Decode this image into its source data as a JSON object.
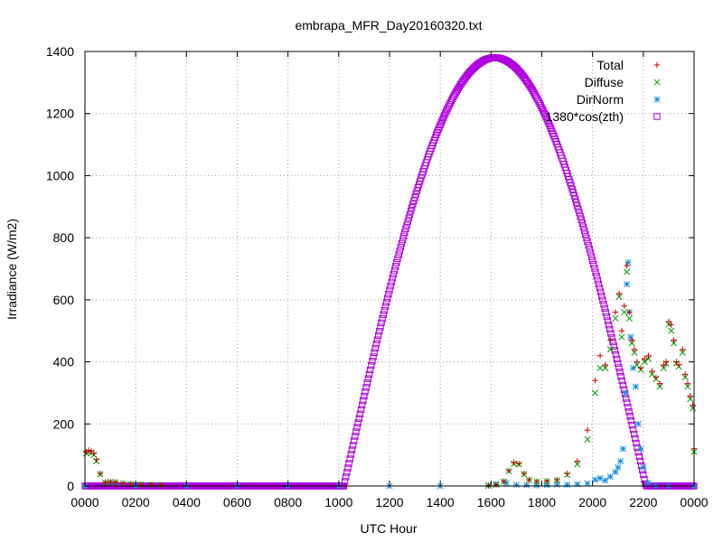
{
  "chart_data": {
    "type": "scatter",
    "title": "embrapa_MFR_Day20160320.txt",
    "xlabel": "UTC Hour",
    "ylabel": "Irradiance (W/m2)",
    "xlim": [
      0,
      24
    ],
    "ylim": [
      0,
      1400
    ],
    "x_tick_labels": [
      "0000",
      "0200",
      "0400",
      "0600",
      "0800",
      "1000",
      "1200",
      "1400",
      "1600",
      "1800",
      "2000",
      "2200",
      "0000"
    ],
    "y_ticks": [
      0,
      200,
      400,
      600,
      800,
      1000,
      1200,
      1400
    ],
    "grid": true,
    "legend_position": "top-right",
    "series": [
      {
        "name": "Total",
        "marker": "plus",
        "color": "#cc0000",
        "points": [
          [
            0.05,
            110
          ],
          [
            0.15,
            115
          ],
          [
            0.25,
            112
          ],
          [
            0.35,
            105
          ],
          [
            0.45,
            85
          ],
          [
            0.6,
            40
          ],
          [
            0.8,
            12
          ],
          [
            1.0,
            14
          ],
          [
            1.2,
            13
          ],
          [
            1.5,
            9
          ],
          [
            1.8,
            7
          ],
          [
            2.2,
            5
          ],
          [
            2.6,
            4
          ],
          [
            3.0,
            3
          ],
          [
            15.9,
            1
          ],
          [
            16.2,
            4
          ],
          [
            16.5,
            15
          ],
          [
            16.7,
            50
          ],
          [
            16.9,
            75
          ],
          [
            17.1,
            72
          ],
          [
            17.3,
            40
          ],
          [
            17.5,
            20
          ],
          [
            17.8,
            15
          ],
          [
            18.2,
            16
          ],
          [
            18.6,
            20
          ],
          [
            19.0,
            40
          ],
          [
            19.4,
            80
          ],
          [
            19.8,
            180
          ],
          [
            20.1,
            340
          ],
          [
            20.3,
            420
          ],
          [
            20.5,
            390
          ],
          [
            20.7,
            470
          ],
          [
            20.9,
            560
          ],
          [
            21.05,
            620
          ],
          [
            21.15,
            500
          ],
          [
            21.25,
            580
          ],
          [
            21.35,
            710
          ],
          [
            21.45,
            560
          ],
          [
            21.55,
            470
          ],
          [
            21.65,
            440
          ],
          [
            21.75,
            400
          ],
          [
            21.9,
            380
          ],
          [
            22.05,
            410
          ],
          [
            22.2,
            420
          ],
          [
            22.35,
            370
          ],
          [
            22.5,
            350
          ],
          [
            22.65,
            330
          ],
          [
            22.8,
            390
          ],
          [
            22.9,
            400
          ],
          [
            23.0,
            530
          ],
          [
            23.1,
            520
          ],
          [
            23.2,
            470
          ],
          [
            23.3,
            400
          ],
          [
            23.4,
            390
          ],
          [
            23.55,
            440
          ],
          [
            23.65,
            360
          ],
          [
            23.75,
            330
          ],
          [
            23.85,
            290
          ],
          [
            23.95,
            260
          ],
          [
            24.0,
            120
          ]
        ]
      },
      {
        "name": "Diffuse",
        "marker": "cross",
        "color": "#00a000",
        "points": [
          [
            0.05,
            105
          ],
          [
            0.15,
            110
          ],
          [
            0.25,
            108
          ],
          [
            0.35,
            100
          ],
          [
            0.45,
            80
          ],
          [
            0.6,
            38
          ],
          [
            0.8,
            11
          ],
          [
            1.0,
            13
          ],
          [
            1.2,
            12
          ],
          [
            1.5,
            8
          ],
          [
            1.8,
            6
          ],
          [
            2.2,
            5
          ],
          [
            2.6,
            4
          ],
          [
            3.0,
            3
          ],
          [
            15.9,
            1
          ],
          [
            16.2,
            4
          ],
          [
            16.5,
            14
          ],
          [
            16.7,
            48
          ],
          [
            16.9,
            72
          ],
          [
            17.1,
            70
          ],
          [
            17.3,
            38
          ],
          [
            17.5,
            19
          ],
          [
            17.8,
            14
          ],
          [
            18.2,
            15
          ],
          [
            18.6,
            18
          ],
          [
            19.0,
            36
          ],
          [
            19.4,
            70
          ],
          [
            19.8,
            150
          ],
          [
            20.1,
            300
          ],
          [
            20.3,
            380
          ],
          [
            20.5,
            380
          ],
          [
            20.7,
            440
          ],
          [
            20.9,
            540
          ],
          [
            21.05,
            610
          ],
          [
            21.15,
            480
          ],
          [
            21.25,
            560
          ],
          [
            21.35,
            690
          ],
          [
            21.45,
            540
          ],
          [
            21.55,
            460
          ],
          [
            21.65,
            430
          ],
          [
            21.75,
            390
          ],
          [
            21.9,
            375
          ],
          [
            22.05,
            400
          ],
          [
            22.2,
            410
          ],
          [
            22.35,
            360
          ],
          [
            22.5,
            345
          ],
          [
            22.65,
            320
          ],
          [
            22.8,
            380
          ],
          [
            22.9,
            395
          ],
          [
            23.0,
            520
          ],
          [
            23.1,
            500
          ],
          [
            23.2,
            460
          ],
          [
            23.3,
            395
          ],
          [
            23.4,
            385
          ],
          [
            23.55,
            430
          ],
          [
            23.65,
            350
          ],
          [
            23.75,
            320
          ],
          [
            23.85,
            280
          ],
          [
            23.95,
            250
          ],
          [
            24.0,
            110
          ]
        ]
      },
      {
        "name": "DirNorm",
        "marker": "star",
        "color": "#1a8fe0",
        "points": [
          [
            0.0,
            0
          ],
          [
            2.0,
            0
          ],
          [
            4.0,
            0
          ],
          [
            6.0,
            0
          ],
          [
            8.0,
            0
          ],
          [
            10.0,
            0
          ],
          [
            12.0,
            0
          ],
          [
            14.0,
            0
          ],
          [
            15.9,
            2
          ],
          [
            16.2,
            6
          ],
          [
            16.6,
            10
          ],
          [
            17.0,
            4
          ],
          [
            17.4,
            3
          ],
          [
            17.8,
            2
          ],
          [
            18.2,
            3
          ],
          [
            18.6,
            5
          ],
          [
            19.0,
            4
          ],
          [
            19.4,
            6
          ],
          [
            19.8,
            8
          ],
          [
            20.1,
            20
          ],
          [
            20.3,
            25
          ],
          [
            20.5,
            18
          ],
          [
            20.7,
            30
          ],
          [
            20.9,
            45
          ],
          [
            21.0,
            60
          ],
          [
            21.1,
            80
          ],
          [
            21.2,
            120
          ],
          [
            21.3,
            300
          ],
          [
            21.35,
            650
          ],
          [
            21.4,
            720
          ],
          [
            21.45,
            560
          ],
          [
            21.5,
            480
          ],
          [
            21.6,
            380
          ],
          [
            21.7,
            320
          ],
          [
            21.8,
            200
          ],
          [
            21.9,
            120
          ],
          [
            22.0,
            60
          ],
          [
            22.2,
            10
          ],
          [
            22.5,
            0
          ],
          [
            23.0,
            0
          ],
          [
            24.0,
            0
          ]
        ]
      },
      {
        "name": "1380*cos(zth)",
        "marker": "square",
        "color": "#b000e0",
        "curve": {
          "amplitude": 1380,
          "noon_hour": 16.15,
          "sunrise_hour": 10.2,
          "sunset_hour": 22.1
        }
      }
    ]
  }
}
